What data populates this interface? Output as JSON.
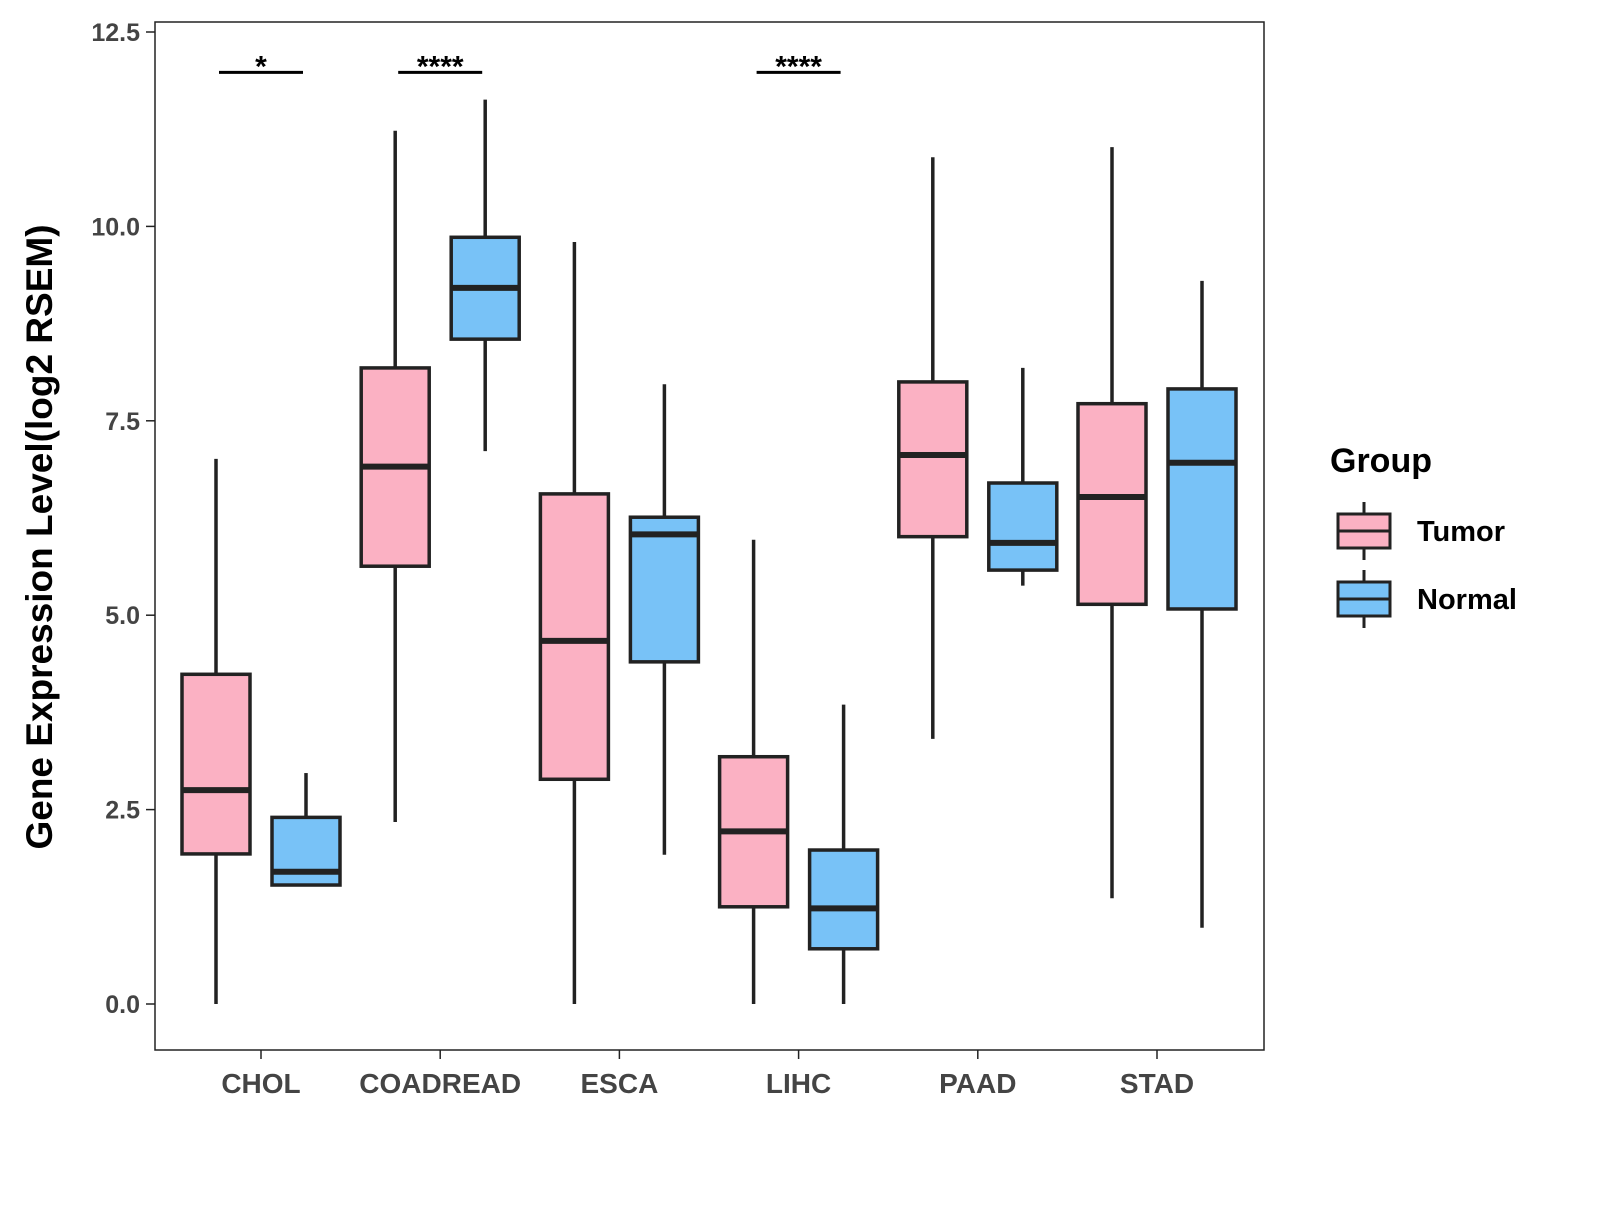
{
  "chart_data": {
    "type": "boxplot",
    "title": "",
    "xlabel": "",
    "ylabel": "Gene Expression Level(log2 RSEM)",
    "ylim": [
      -0.6,
      12.7
    ],
    "yticks": [
      0,
      2.5,
      5,
      7.5,
      10,
      12.5
    ],
    "ytick_labels": [
      "0.0",
      "2.5",
      "5.0",
      "7.5",
      "10.0",
      "12.5"
    ],
    "categories": [
      "CHOL",
      "COADREAD",
      "ESCA",
      "LIHC",
      "PAAD",
      "STAD"
    ],
    "legend": {
      "title": "Group",
      "position": "right"
    },
    "series": [
      {
        "name": "Tumor",
        "color": "#FBB1C3",
        "boxes": [
          {
            "min": 0.0,
            "q1": 1.93,
            "median": 2.75,
            "q3": 4.24,
            "max": 7.01
          },
          {
            "min": 2.34,
            "q1": 5.63,
            "median": 6.91,
            "q3": 8.18,
            "max": 11.23
          },
          {
            "min": 0.0,
            "q1": 2.89,
            "median": 4.67,
            "q3": 6.56,
            "max": 9.8
          },
          {
            "min": 0.0,
            "q1": 1.25,
            "median": 2.22,
            "q3": 3.18,
            "max": 5.97
          },
          {
            "min": 3.41,
            "q1": 6.01,
            "median": 7.06,
            "q3": 8.0,
            "max": 10.89
          },
          {
            "min": 1.36,
            "q1": 5.14,
            "median": 6.52,
            "q3": 7.72,
            "max": 11.02
          }
        ]
      },
      {
        "name": "Normal",
        "color": "#78C2F7",
        "boxes": [
          {
            "min": 1.53,
            "q1": 1.53,
            "median": 1.7,
            "q3": 2.4,
            "max": 2.97
          },
          {
            "min": 7.11,
            "q1": 8.55,
            "median": 9.21,
            "q3": 9.86,
            "max": 11.63
          },
          {
            "min": 1.92,
            "q1": 4.4,
            "median": 6.04,
            "q3": 6.26,
            "max": 7.97
          },
          {
            "min": 0.0,
            "q1": 0.71,
            "median": 1.23,
            "q3": 1.98,
            "max": 3.85
          },
          {
            "min": 5.38,
            "q1": 5.58,
            "median": 5.93,
            "q3": 6.7,
            "max": 8.18
          },
          {
            "min": 0.98,
            "q1": 5.08,
            "median": 6.96,
            "q3": 7.91,
            "max": 9.3
          }
        ]
      }
    ],
    "annotations": [
      {
        "category": "CHOL",
        "label": "*",
        "y": 11.98
      },
      {
        "category": "COADREAD",
        "label": "****",
        "y": 11.98
      },
      {
        "category": "LIHC",
        "label": "****",
        "y": 11.98
      }
    ]
  }
}
